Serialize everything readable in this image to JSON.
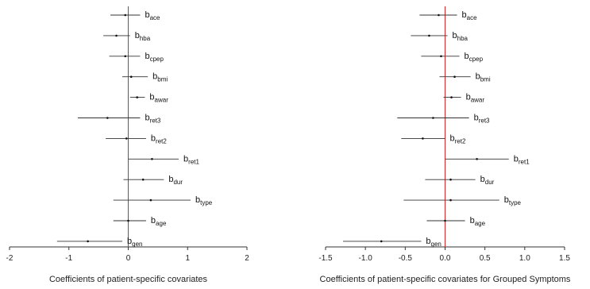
{
  "chart_data": [
    {
      "type": "forest",
      "xlabel": "Coefficients of patient-specific covariates",
      "xlim": [
        -2,
        2
      ],
      "xticks": [
        -2,
        -1,
        0,
        1,
        2
      ],
      "xtick_labels": [
        "-2",
        "-1",
        "0",
        "1",
        "2"
      ],
      "reference_line": 0,
      "colors": {
        "reference": "#d62728",
        "interval": "#333333",
        "axis": "#333333"
      },
      "rows": [
        {
          "base": "b",
          "sub": "ace",
          "est": -0.05,
          "lo": -0.3,
          "hi": 0.2
        },
        {
          "base": "b",
          "sub": "hba",
          "est": -0.2,
          "lo": -0.42,
          "hi": 0.03
        },
        {
          "base": "b",
          "sub": "cpep",
          "est": -0.05,
          "lo": -0.32,
          "hi": 0.2
        },
        {
          "base": "b",
          "sub": "bmi",
          "est": 0.05,
          "lo": -0.1,
          "hi": 0.33
        },
        {
          "base": "b",
          "sub": "awar",
          "est": 0.15,
          "lo": 0.03,
          "hi": 0.28
        },
        {
          "base": "b",
          "sub": "ret3",
          "est": -0.35,
          "lo": -0.85,
          "hi": 0.2
        },
        {
          "base": "b",
          "sub": "ret2",
          "est": -0.03,
          "lo": -0.38,
          "hi": 0.3
        },
        {
          "base": "b",
          "sub": "ret1",
          "est": 0.4,
          "lo": 0.0,
          "hi": 0.85
        },
        {
          "base": "b",
          "sub": "dur",
          "est": 0.25,
          "lo": -0.08,
          "hi": 0.6
        },
        {
          "base": "b",
          "sub": "type",
          "est": 0.38,
          "lo": -0.25,
          "hi": 1.05
        },
        {
          "base": "b",
          "sub": "age",
          "est": 0.0,
          "lo": -0.25,
          "hi": 0.3
        },
        {
          "base": "b",
          "sub": "gen",
          "est": -0.68,
          "lo": -1.2,
          "hi": -0.1
        }
      ]
    },
    {
      "type": "forest",
      "xlabel": "Coefficients of patient-specific covariates for Grouped Symptoms",
      "xlim": [
        -1.5,
        1.5
      ],
      "xticks": [
        -1.5,
        -1.0,
        -0.5,
        0,
        0.5,
        1.0,
        1.5
      ],
      "xtick_labels": [
        "-1.5",
        "-1.0",
        "-0.5",
        "0.0",
        "0.5",
        "1.0",
        "1.5"
      ],
      "reference_line": 0,
      "colors": {
        "reference": "#d62728",
        "interval": "#333333",
        "axis": "#333333"
      },
      "rows": [
        {
          "base": "b",
          "sub": "ace",
          "est": -0.08,
          "lo": -0.32,
          "hi": 0.15
        },
        {
          "base": "b",
          "sub": "hba",
          "est": -0.2,
          "lo": -0.43,
          "hi": 0.03
        },
        {
          "base": "b",
          "sub": "cpep",
          "est": -0.05,
          "lo": -0.3,
          "hi": 0.18
        },
        {
          "base": "b",
          "sub": "bmi",
          "est": 0.12,
          "lo": -0.07,
          "hi": 0.32
        },
        {
          "base": "b",
          "sub": "awar",
          "est": 0.08,
          "lo": -0.02,
          "hi": 0.2
        },
        {
          "base": "b",
          "sub": "ret3",
          "est": -0.15,
          "lo": -0.6,
          "hi": 0.3
        },
        {
          "base": "b",
          "sub": "ret2",
          "est": -0.28,
          "lo": -0.55,
          "hi": 0.0
        },
        {
          "base": "b",
          "sub": "ret1",
          "est": 0.4,
          "lo": 0.0,
          "hi": 0.8
        },
        {
          "base": "b",
          "sub": "dur",
          "est": 0.07,
          "lo": -0.25,
          "hi": 0.38
        },
        {
          "base": "b",
          "sub": "type",
          "est": 0.07,
          "lo": -0.52,
          "hi": 0.68
        },
        {
          "base": "b",
          "sub": "age",
          "est": 0.0,
          "lo": -0.23,
          "hi": 0.25
        },
        {
          "base": "b",
          "sub": "gen",
          "est": -0.8,
          "lo": -1.28,
          "hi": -0.3
        }
      ]
    }
  ]
}
